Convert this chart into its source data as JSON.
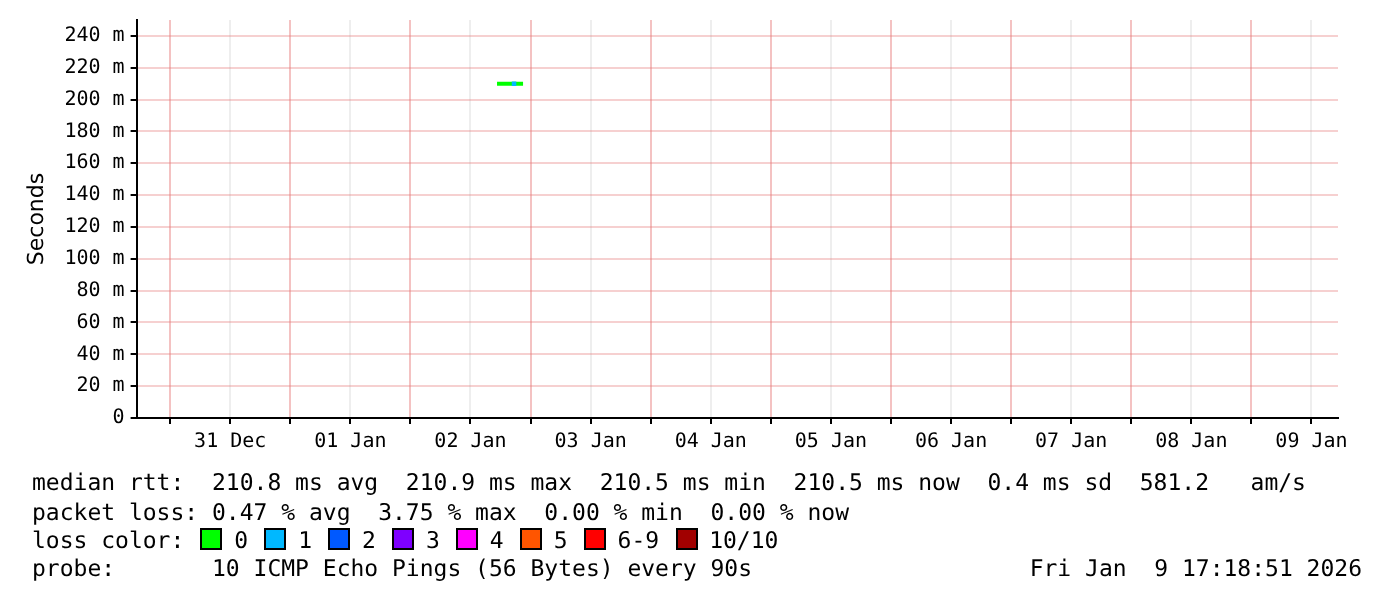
{
  "chart_data": {
    "type": "line",
    "ylabel": "Seconds",
    "series": [
      {
        "color": "#00ff00",
        "x": [
          "2026-01-02T17:18",
          "2026-01-02T22:30"
        ],
        "values": [
          210,
          210
        ]
      },
      {
        "type": "scatter",
        "marker": "square",
        "color": "#00b8ff",
        "x": [
          "2026-01-02T20:42"
        ],
        "values": [
          210
        ]
      }
    ],
    "xlim": [
      "2025-12-30T17:18",
      "2026-01-09T17:18"
    ],
    "xticks": [
      {
        "value": "2025-12-31T00:00",
        "label": null
      },
      {
        "value": "2025-12-31T12:00",
        "label": "31 Dec"
      },
      {
        "value": "2026-01-01T00:00",
        "label": null
      },
      {
        "value": "2026-01-01T12:00",
        "label": "01 Jan"
      },
      {
        "value": "2026-01-02T00:00",
        "label": null
      },
      {
        "value": "2026-01-02T12:00",
        "label": "02 Jan"
      },
      {
        "value": "2026-01-03T00:00",
        "label": null
      },
      {
        "value": "2026-01-03T12:00",
        "label": "03 Jan"
      },
      {
        "value": "2026-01-04T00:00",
        "label": null
      },
      {
        "value": "2026-01-04T12:00",
        "label": "04 Jan"
      },
      {
        "value": "2026-01-05T00:00",
        "label": null
      },
      {
        "value": "2026-01-05T12:00",
        "label": "05 Jan"
      },
      {
        "value": "2026-01-06T00:00",
        "label": null
      },
      {
        "value": "2026-01-06T12:00",
        "label": "06 Jan"
      },
      {
        "value": "2026-01-07T00:00",
        "label": null
      },
      {
        "value": "2026-01-07T12:00",
        "label": "07 Jan"
      },
      {
        "value": "2026-01-08T00:00",
        "label": null
      },
      {
        "value": "2026-01-08T12:00",
        "label": "08 Jan"
      },
      {
        "value": "2026-01-09T00:00",
        "label": null
      },
      {
        "value": "2026-01-09T12:00",
        "label": "09 Jan"
      }
    ],
    "ylim": [
      0,
      250
    ],
    "yticks": [
      0,
      {
        "value": 20,
        "label": "20 m"
      },
      {
        "value": 40,
        "label": "40 m"
      },
      {
        "value": 60,
        "label": "60 m"
      },
      {
        "value": 80,
        "label": "80 m"
      },
      {
        "value": 100,
        "label": "100 m"
      },
      {
        "value": 120,
        "label": "120 m"
      },
      {
        "value": 140,
        "label": "140 m"
      },
      {
        "value": 160,
        "label": "160 m"
      },
      {
        "value": 180,
        "label": "180 m"
      },
      {
        "value": 200,
        "label": "200 m"
      },
      {
        "value": 220,
        "label": "220 m"
      },
      {
        "value": 240,
        "label": "240 m"
      }
    ],
    "grid": true,
    "legend": false,
    "marker": "none",
    "line_style": "solid",
    "annotations": [
      "median rtt:  210.8 ms avg  210.9 ms max  210.5 ms min  210.5 ms now  0.4 ms sd  581.2   am/s",
      "packet loss: 0.47 % avg  3.75 % max  0.00 % min  0.00 % now",
      "loss color:",
      "0",
      "1",
      "2",
      "3",
      "4",
      "5",
      "6-9",
      "10/10",
      "probe:       10 ICMP Echo Pings (56 Bytes) every 90s",
      "Fri Jan  9 17:18:51 2026"
    ]
  }
}
